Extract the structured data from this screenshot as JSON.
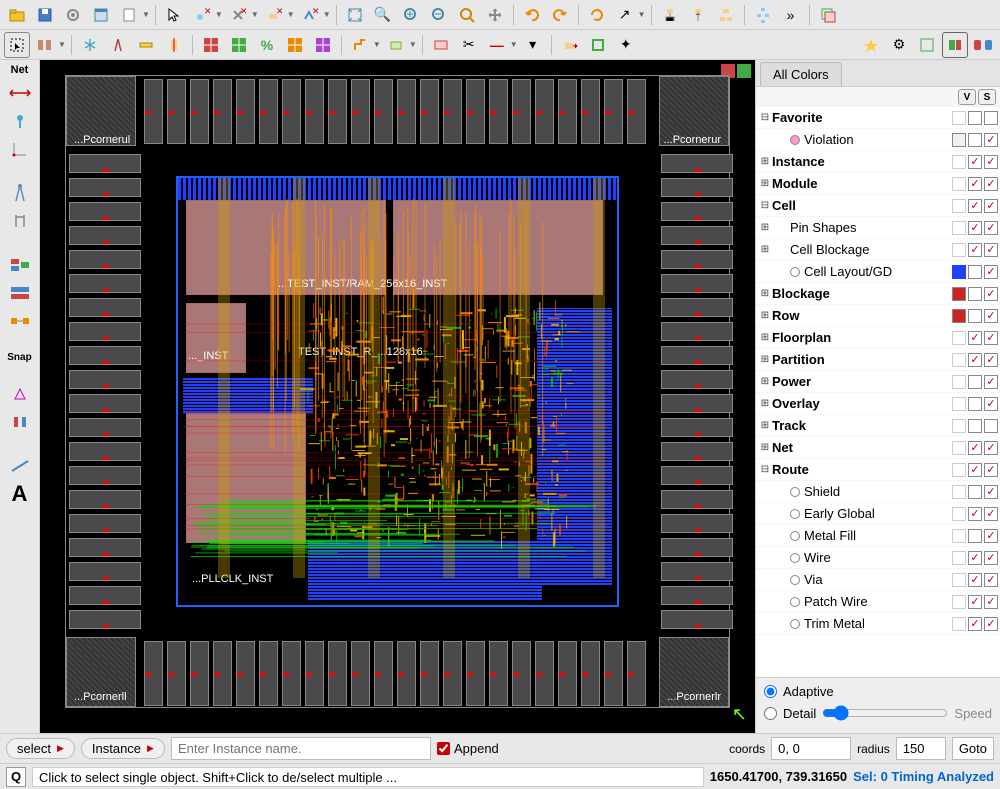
{
  "toolbars": {
    "row1_icons": [
      "folder",
      "save",
      "gear",
      "window",
      "new",
      "sep",
      "cursor",
      "anchor-x",
      "cross-x",
      "node-x",
      "path-x",
      "sep",
      "fit",
      "zoom-region",
      "zoom-in",
      "zoom-out",
      "zoom-sel",
      "pan",
      "sep",
      "undo",
      "redo",
      "sep",
      "refresh",
      "arrow",
      "sep",
      "hier-up",
      "hier",
      "hier-top",
      "sep",
      "tree",
      "more",
      "sep",
      "layers"
    ],
    "row2_icons": [
      "sel-box",
      "sel-mode",
      "sep",
      "snowflake",
      "compass",
      "ruler",
      "align",
      "sep",
      "grid-r",
      "grid-g",
      "percent",
      "grid-o",
      "grid-p",
      "sep",
      "wire1",
      "place",
      "sep",
      "region",
      "cut",
      "minus",
      "dd",
      "sep",
      "move",
      "layer",
      "magic",
      "sep",
      "star",
      "gear2",
      "fit2",
      "box",
      "3d"
    ]
  },
  "left_panel": {
    "title": "Net",
    "snap_label": "Snap",
    "text_icon": "A"
  },
  "canvas": {
    "corners": {
      "ul": "...Pcornerul",
      "ur": "...Pcornerur",
      "ll": "...Pcornerll",
      "lr": "...Pcornerlr"
    },
    "macros": {
      "ram": "...TEST_INST/RAM_256x16_INST",
      "inst": "..._INST",
      "test_r": "TEST_INST_R_...128x16",
      "pll": "...PLLCLK_INST"
    },
    "arrow_color": "#7FFF00"
  },
  "right_panel": {
    "tab": "All Colors",
    "v_label": "V",
    "s_label": "S",
    "tree": [
      {
        "expand": "⊟",
        "indent": 0,
        "bold": true,
        "name": "Favorite",
        "sw": "",
        "v": false,
        "s": false
      },
      {
        "expand": "",
        "indent": 1,
        "dot": "#ff99cc",
        "name": "Violation",
        "sw": "#f0f0f0",
        "v": false,
        "s": true
      },
      {
        "expand": "⊞",
        "indent": 0,
        "bold": true,
        "name": "Instance",
        "sw": "",
        "v": true,
        "s": true
      },
      {
        "expand": "⊞",
        "indent": 0,
        "bold": true,
        "name": "Module",
        "sw": "",
        "v": true,
        "s": true
      },
      {
        "expand": "⊟",
        "indent": 0,
        "bold": true,
        "name": "Cell",
        "sw": "",
        "v": true,
        "s": true
      },
      {
        "expand": "⊞",
        "indent": 1,
        "name": "Pin Shapes",
        "sw": "",
        "v": true,
        "s": true
      },
      {
        "expand": "⊞",
        "indent": 1,
        "name": "Cell Blockage",
        "sw": "",
        "v": true,
        "s": true
      },
      {
        "expand": "",
        "indent": 1,
        "dot": "#fff",
        "name": "Cell Layout/GD",
        "sw": "#2040ff",
        "v": false,
        "s": true,
        "swborder": true
      },
      {
        "expand": "⊞",
        "indent": 0,
        "bold": true,
        "name": "Blockage",
        "sw": "#cc2222",
        "v": false,
        "s": true
      },
      {
        "expand": "⊞",
        "indent": 0,
        "bold": true,
        "name": "Row",
        "sw": "#cc2222",
        "v": false,
        "s": true
      },
      {
        "expand": "⊞",
        "indent": 0,
        "bold": true,
        "name": "Floorplan",
        "sw": "",
        "v": true,
        "s": true
      },
      {
        "expand": "⊞",
        "indent": 0,
        "bold": true,
        "name": "Partition",
        "sw": "",
        "v": true,
        "s": true
      },
      {
        "expand": "⊞",
        "indent": 0,
        "bold": true,
        "name": "Power",
        "sw": "",
        "v": false,
        "s": true
      },
      {
        "expand": "⊞",
        "indent": 0,
        "bold": true,
        "name": "Overlay",
        "sw": "",
        "v": false,
        "s": true
      },
      {
        "expand": "⊞",
        "indent": 0,
        "bold": true,
        "name": "Track",
        "sw": "",
        "v": false,
        "s": false
      },
      {
        "expand": "⊞",
        "indent": 0,
        "bold": true,
        "name": "Net",
        "sw": "",
        "v": true,
        "s": true
      },
      {
        "expand": "⊟",
        "indent": 0,
        "bold": true,
        "name": "Route",
        "sw": "",
        "v": true,
        "s": true
      },
      {
        "expand": "",
        "indent": 1,
        "dot": "#fff",
        "name": "Shield",
        "sw": "",
        "v": false,
        "s": true
      },
      {
        "expand": "",
        "indent": 1,
        "dot": "#fff",
        "name": "Early Global",
        "sw": "",
        "v": true,
        "s": true
      },
      {
        "expand": "",
        "indent": 1,
        "dot": "#fff",
        "name": "Metal Fill",
        "sw": "",
        "v": false,
        "s": true
      },
      {
        "expand": "",
        "indent": 1,
        "dot": "#fff",
        "name": "Wire",
        "sw": "",
        "v": true,
        "s": true
      },
      {
        "expand": "",
        "indent": 1,
        "dot": "#fff",
        "name": "Via",
        "sw": "",
        "v": true,
        "s": true
      },
      {
        "expand": "",
        "indent": 1,
        "dot": "#fff",
        "name": "Patch Wire",
        "sw": "",
        "v": true,
        "s": true
      },
      {
        "expand": "",
        "indent": 1,
        "dot": "#fff",
        "name": "Trim Metal",
        "sw": "",
        "v": true,
        "s": true
      }
    ],
    "adaptive": "Adaptive",
    "detail": "Detail",
    "speed": "Speed"
  },
  "bottom": {
    "select": "select",
    "instance": "Instance",
    "placeholder": "Enter Instance name.",
    "append": "Append",
    "coords_label": "coords",
    "coords_val": "0, 0",
    "radius_label": "radius",
    "radius_val": "150",
    "goto": "Goto"
  },
  "status": {
    "q": "Q",
    "hint": "Click to select single object. Shift+Click to de/select multiple ...",
    "coords": "1650.41700, 739.31650",
    "sel": "Sel: 0 Timing Analyzed"
  }
}
